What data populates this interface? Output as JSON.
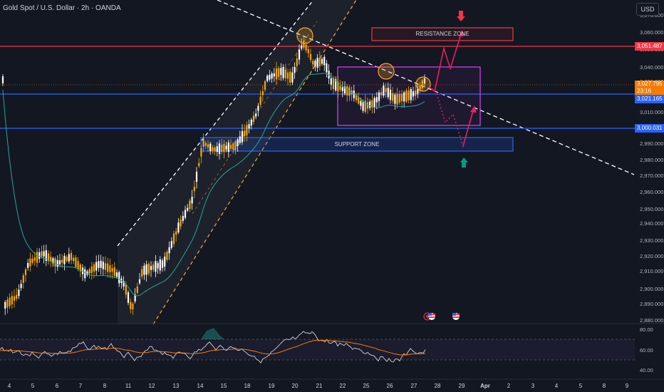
{
  "header": {
    "symbol_title": "Gold Spot / U.S. Dollar · 2h · OANDA",
    "currency_button": "USD"
  },
  "price_axis": {
    "ticks": [
      "3,070.000",
      "3,060.000",
      "3,050.000",
      "3,040.000",
      "3,030.000",
      "3,020.000",
      "3,010.000",
      "3,000.000",
      "2,990.000",
      "2,980.000",
      "2,970.000",
      "2,960.000",
      "2,950.000",
      "2,940.000",
      "2,930.000",
      "2,920.000",
      "2,910.000",
      "2,900.000",
      "2,890.000",
      "2,880.000"
    ],
    "resistance_price": "3,051.487",
    "current_price": "3,027.795",
    "countdown": "23:16",
    "mid_level_price": "3,021.165",
    "support_price": "3,000.031"
  },
  "rsi_axis": {
    "ticks": [
      "80.00",
      "60.00",
      "40.00"
    ]
  },
  "time_axis": {
    "labels": [
      "4",
      "5",
      "6",
      "7",
      "8",
      "11",
      "12",
      "13",
      "14",
      "15",
      "18",
      "19",
      "20",
      "21",
      "22",
      "25",
      "26",
      "27",
      "28",
      "29",
      "Apr",
      "2",
      "3",
      "4",
      "5",
      "8",
      "9"
    ]
  },
  "annotations": {
    "resistance_zone": "RESISTANCE ZONE",
    "support_zone": "SUPPORT ZONE"
  },
  "colors": {
    "background": "#131722",
    "resistance_line": "#f23645",
    "support_line": "#2962ff",
    "range_box": "#e040fb",
    "projection_arrow": "#e91e63",
    "ema_line": "#26a69a",
    "channel_line": "#f9a825",
    "rsi_line": "#d1d4dc",
    "rsi_ma": "#f57c00"
  },
  "icons": [
    "arrow-down-icon",
    "arrow-up-icon",
    "us-flag-icon",
    "lightning-icon"
  ]
}
